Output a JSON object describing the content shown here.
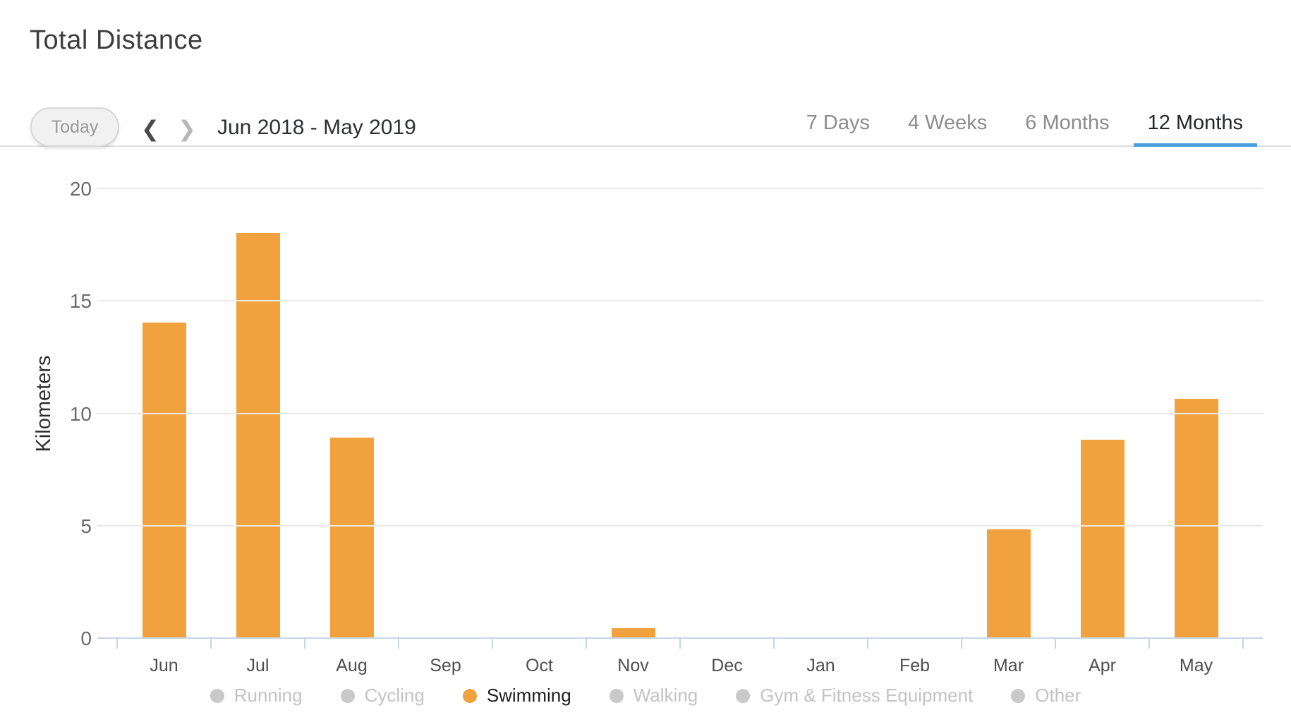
{
  "header": {
    "title": "Total Distance"
  },
  "controls": {
    "today_label": "Today",
    "prev_icon": "❮",
    "next_icon": "❯",
    "date_range": "Jun 2018 - May 2019"
  },
  "tabs": [
    {
      "label": "7 Days",
      "active": false
    },
    {
      "label": "4 Weeks",
      "active": false
    },
    {
      "label": "6 Months",
      "active": false
    },
    {
      "label": "12 Months",
      "active": true
    }
  ],
  "chart_data": {
    "type": "bar",
    "title": "Total Distance",
    "ylabel": "Kilometers",
    "categories": [
      "Jun",
      "Jul",
      "Aug",
      "Sep",
      "Oct",
      "Nov",
      "Dec",
      "Jan",
      "Feb",
      "Mar",
      "Apr",
      "May"
    ],
    "values": [
      14.0,
      18.0,
      8.9,
      0,
      0,
      0.4,
      0,
      0,
      0,
      4.8,
      8.8,
      10.6
    ],
    "series_name": "Swimming",
    "units": "Kilometers",
    "ylim": [
      0,
      20
    ],
    "yticks": [
      0,
      5,
      10,
      15,
      20
    ],
    "grid": true,
    "legend_position": "bottom"
  },
  "legend": [
    {
      "label": "Running",
      "active": false
    },
    {
      "label": "Cycling",
      "active": false
    },
    {
      "label": "Swimming",
      "active": true
    },
    {
      "label": "Walking",
      "active": false
    },
    {
      "label": "Gym & Fitness Equipment",
      "active": false
    },
    {
      "label": "Other",
      "active": false
    }
  ],
  "colors": {
    "bar": "#F1A13E",
    "tab_underline": "#4DA0DB",
    "axis": "#C6D6E6",
    "gridline": "#E9E9E9",
    "inactive_legend": "#C9C9C9"
  }
}
